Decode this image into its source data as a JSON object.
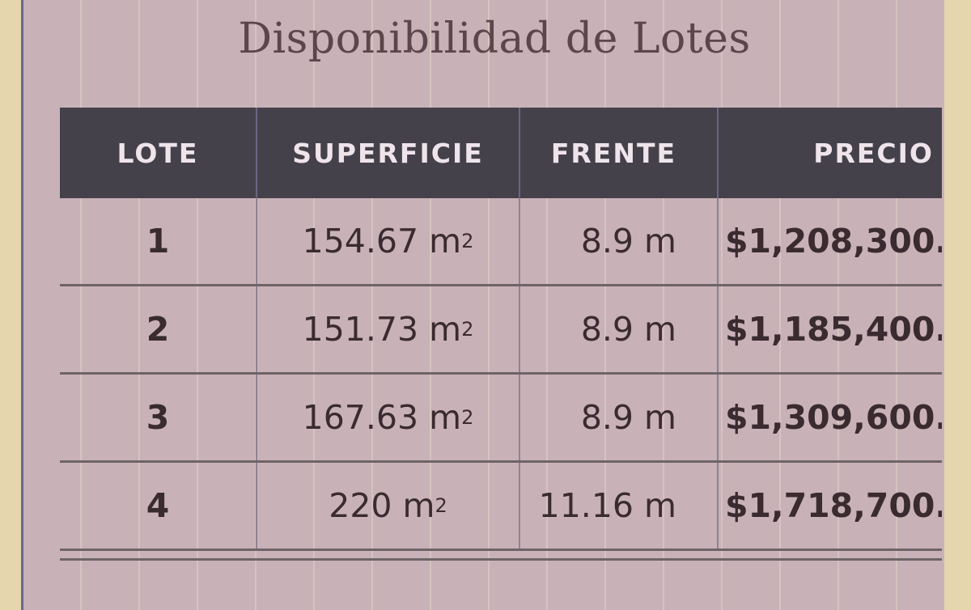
{
  "title": "Disponibilidad de Lotes",
  "columns": [
    "LOTE",
    "SUPERFICIE",
    "FRENTE",
    "PRECIO"
  ],
  "rows": [
    {
      "lote": "1",
      "superficie": "154.67 m",
      "frente": "8.9 m",
      "precio": "$1,208,300."
    },
    {
      "lote": "2",
      "superficie": "151.73 m",
      "frente": "8.9 m",
      "precio": "$1,185,400."
    },
    {
      "lote": "3",
      "superficie": "167.63 m",
      "frente": "8.9 m",
      "precio": "$1,309,600."
    },
    {
      "lote": "4",
      "superficie": "220 m",
      "frente": "11.16 m",
      "precio": "$1,718,700."
    }
  ],
  "unit_sup": "2",
  "colors": {
    "header": "#45414b",
    "paper": "#c8b2b8",
    "background": "#e6d6ad"
  }
}
